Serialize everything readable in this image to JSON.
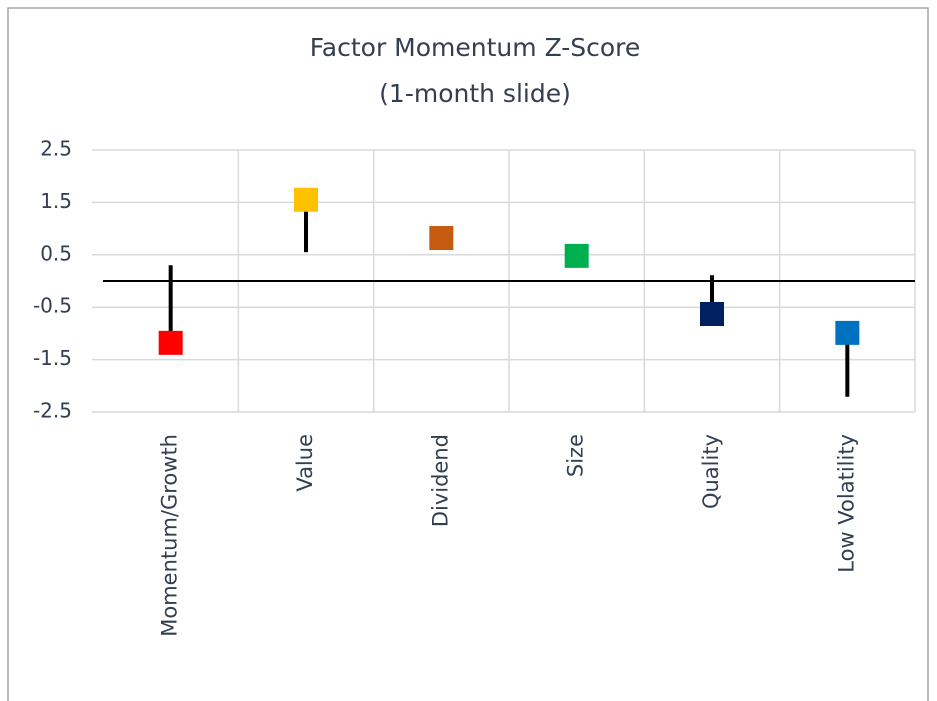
{
  "chart_data": {
    "type": "dot",
    "title": [
      "Factor Momentum Z-Score",
      "(1-month slide)"
    ],
    "categories": [
      "Momentum/Growth",
      "Value",
      "Dividend",
      "Size",
      "Quality",
      "Low Volatility"
    ],
    "values": [
      -1.18,
      1.55,
      0.82,
      0.48,
      -0.63,
      -0.99
    ],
    "start_values": [
      0.3,
      0.55,
      null,
      null,
      0.11,
      -2.21
    ],
    "colors": [
      "#ff0000",
      "#ffc000",
      "#c55a11",
      "#00b050",
      "#002060",
      "#0070c0"
    ],
    "ylim": [
      -2.5,
      2.5
    ],
    "yticks": [
      2.5,
      1.5,
      0.5,
      -0.5,
      -1.5,
      -2.5
    ],
    "grid": true
  }
}
